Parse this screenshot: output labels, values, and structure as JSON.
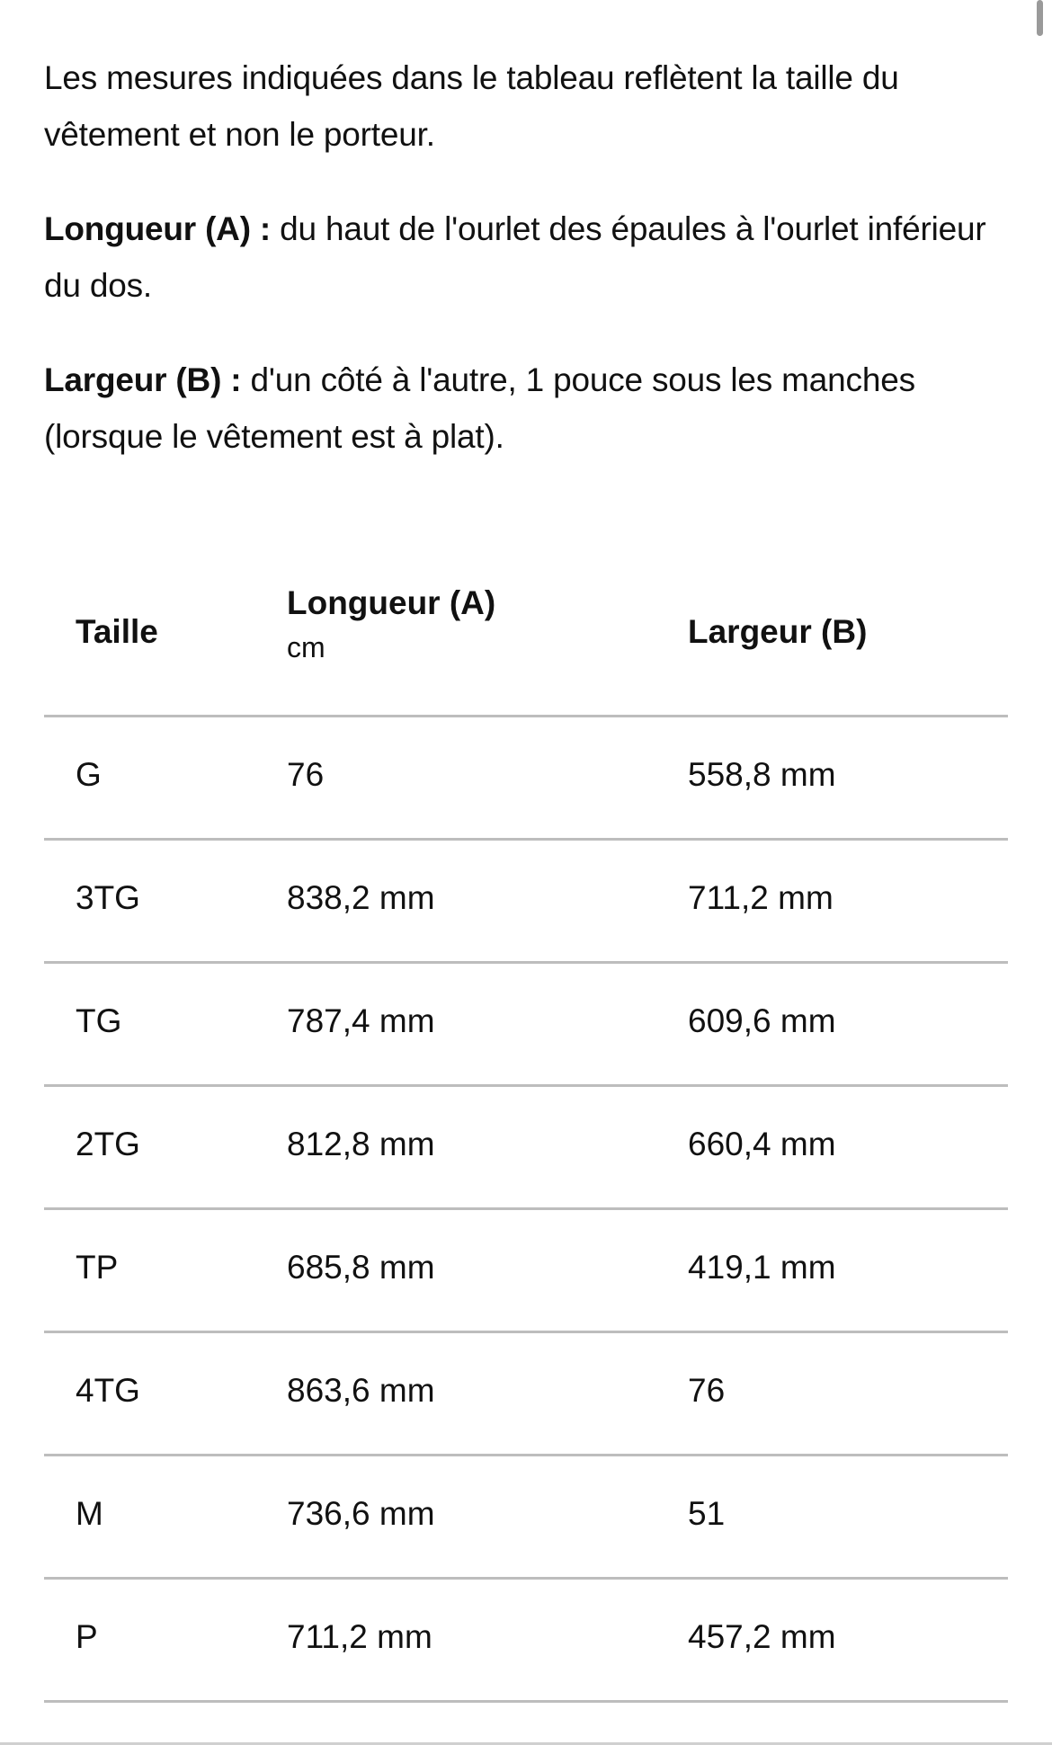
{
  "intro": {
    "text": "Les mesures indiquées dans le tableau reflètent la taille du vêtement et non le porteur."
  },
  "definitions": [
    {
      "term": "Longueur (A) :",
      "text": " du haut de l'ourlet des épaules à l'ourlet inférieur du dos."
    },
    {
      "term": "Largeur (B) :",
      "text": " d'un côté à l'autre, 1 pouce sous les manches (lorsque le vêtement est à plat)."
    }
  ],
  "table": {
    "headers": {
      "size": "Taille",
      "length": "Longueur (A)",
      "length_unit": "cm",
      "width": "Largeur (B)"
    },
    "rows": [
      {
        "size": "G",
        "length": "76",
        "width": "558,8 mm"
      },
      {
        "size": "3TG",
        "length": "838,2 mm",
        "width": "711,2 mm"
      },
      {
        "size": "TG",
        "length": "787,4 mm",
        "width": "609,6 mm"
      },
      {
        "size": "2TG",
        "length": "812,8 mm",
        "width": "660,4 mm"
      },
      {
        "size": "TP",
        "length": "685,8 mm",
        "width": "419,1 mm"
      },
      {
        "size": "4TG",
        "length": "863,6 mm",
        "width": "76"
      },
      {
        "size": "M",
        "length": "736,6 mm",
        "width": "51"
      },
      {
        "size": "P",
        "length": "711,2 mm",
        "width": "457,2 mm"
      }
    ]
  }
}
